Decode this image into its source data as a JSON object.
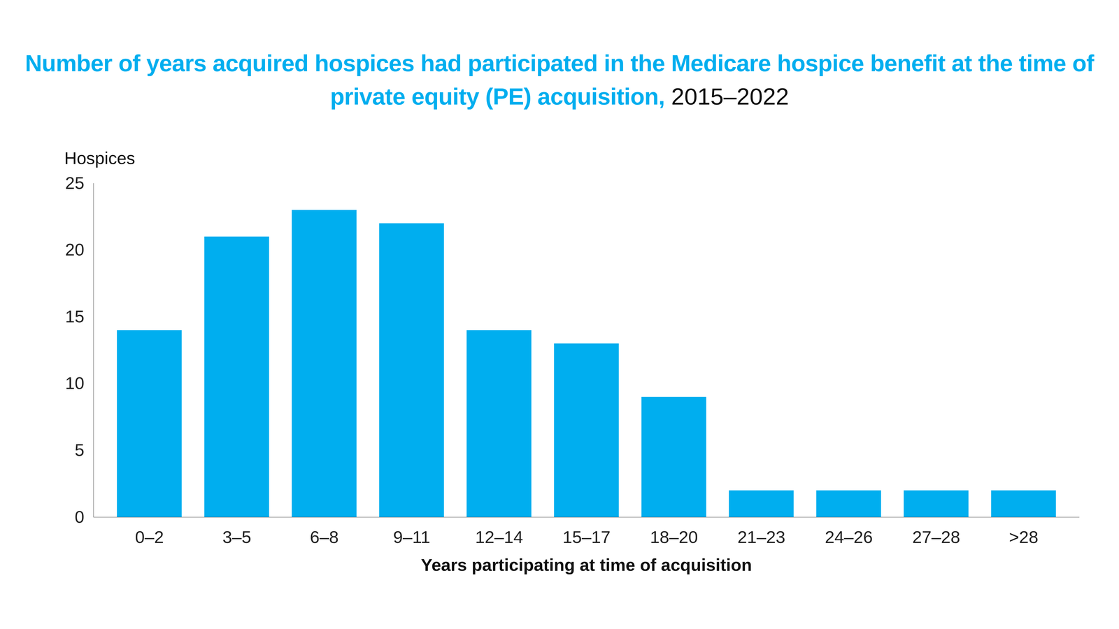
{
  "chart_data": {
    "type": "bar",
    "title": "Number of years acquired hospices had participated in the Medicare hospice benefit at the time of private equity (PE) acquisition,",
    "subtitle": "2015–2022",
    "xlabel": "Years participating at time of acquisition",
    "ylabel": "Hospices",
    "categories": [
      "0–2",
      "3–5",
      "6–8",
      "9–11",
      "12–14",
      "15–17",
      "18–20",
      "21–23",
      "24–26",
      "27–28",
      ">28"
    ],
    "values": [
      14,
      21,
      23,
      22,
      14,
      13,
      9,
      2,
      2,
      2,
      2
    ],
    "color": "#00aeef",
    "ylim": [
      0,
      25
    ],
    "yticks": [
      0,
      5,
      10,
      15,
      20,
      25
    ],
    "grid": false
  }
}
